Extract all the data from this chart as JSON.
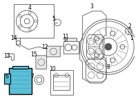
{
  "bg_color": "#ffffff",
  "fig_width": 2.0,
  "fig_height": 1.47,
  "dpi": 100,
  "highlight_color": "#5bbfd6",
  "border_color": "#000000",
  "label_color": "#000000",
  "line_color": "#555555",
  "lw": 0.6
}
